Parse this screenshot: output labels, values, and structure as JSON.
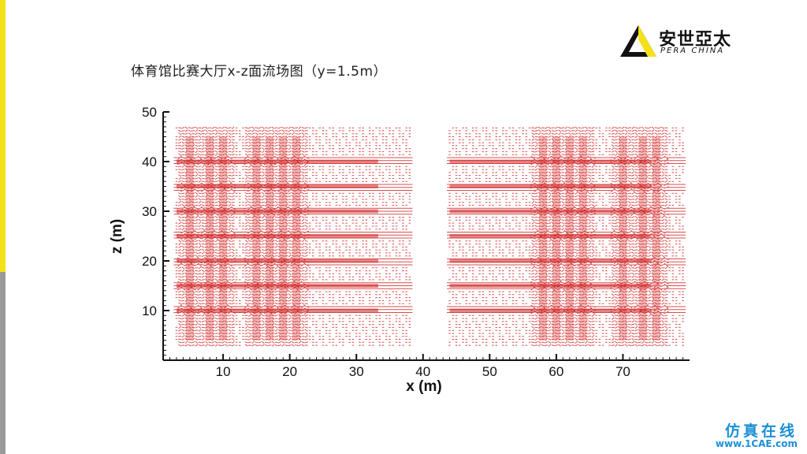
{
  "slide": {
    "title": "体育馆比赛大厅x-z面流场图（y=1.5m）"
  },
  "logo": {
    "cn": "安世亞太",
    "en": "PERA CHINA",
    "icon": "triangle-logo-icon"
  },
  "watermark": {
    "cn": "仿真在线",
    "url": "www.1CAE.com"
  },
  "colors": {
    "accent": "#f5e11a",
    "vector": "#cc1111",
    "watermark": "#1b8fd6"
  },
  "chart_data": {
    "type": "scatter",
    "subtype": "vector-field",
    "title": "",
    "xlabel": "x (m)",
    "ylabel": "z (m)",
    "xlim": [
      1,
      80
    ],
    "ylim": [
      0,
      50
    ],
    "xticks": [
      10,
      20,
      30,
      40,
      50,
      60,
      70
    ],
    "yticks": [
      10,
      20,
      30,
      40,
      50
    ],
    "grid": false,
    "legend": "none",
    "series": [
      {
        "x_range": [
          3,
          38
        ],
        "z_range": [
          3,
          47
        ],
        "dense_columns_x": [
          5,
          8,
          10,
          15,
          17,
          19,
          21
        ],
        "dense_rows_z": [
          10,
          15,
          20,
          25,
          30,
          35,
          40
        ]
      },
      {
        "x_range": [
          44,
          79
        ],
        "z_range": [
          3,
          47
        ],
        "dense_columns_x": [
          58,
          60,
          62,
          64,
          70,
          73,
          75
        ],
        "dense_rows_z": [
          10,
          15,
          20,
          25,
          30,
          35,
          40
        ]
      }
    ]
  }
}
